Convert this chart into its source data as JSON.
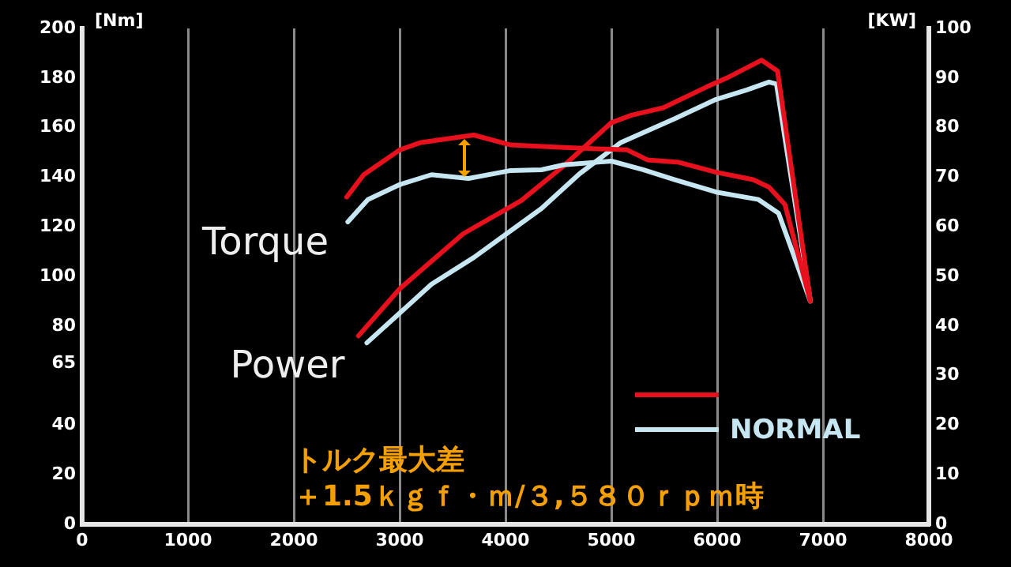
{
  "chart_data": {
    "type": "line",
    "ylabel": "[Nm]",
    "y2label": "[KW]",
    "xlim": [
      0,
      8000
    ],
    "xticks": [
      0,
      1000,
      2000,
      3000,
      4000,
      5000,
      6000,
      7000,
      8000
    ],
    "ylim": [
      0,
      200
    ],
    "yticks": [
      0,
      20,
      40,
      65,
      80,
      100,
      120,
      140,
      160,
      180,
      200
    ],
    "y2lim": [
      0,
      100
    ],
    "y2ticks": [
      0,
      10,
      20,
      30,
      40,
      50,
      60,
      70,
      80,
      90,
      100
    ],
    "grid": "x",
    "legend": "bottom right",
    "marker": "none",
    "line_style": "solid",
    "series": [
      {
        "color": "#e8101c",
        "x": [
          2500,
          2660,
          3000,
          3200,
          3700,
          4050,
          4550,
          5150,
          5340,
          5640,
          5990,
          6340,
          6490,
          6640,
          6880
        ],
        "values": [
          132,
          141,
          151,
          154,
          157,
          153,
          152,
          151,
          147,
          146,
          142,
          139,
          136,
          129,
          90
        ]
      },
      {
        "name": "NORMAL",
        "color": "#c6e6f2",
        "x": [
          2510,
          2700,
          3000,
          3300,
          3650,
          4050,
          4340,
          4550,
          5000,
          5300,
          5600,
          5990,
          6390,
          6580,
          6880
        ],
        "values": [
          122,
          131,
          137,
          141,
          139.5,
          142.7,
          143,
          145,
          146.5,
          143,
          139,
          134,
          131,
          125.5,
          90
        ]
      },
      {
        "color": "#e8101c",
        "axis": "y2",
        "x": [
          2610,
          3000,
          3600,
          4150,
          4550,
          5000,
          5190,
          5490,
          5900,
          6090,
          6420,
          6570,
          6880
        ],
        "values": [
          38,
          47.5,
          58.6,
          65.3,
          72.3,
          81,
          82.5,
          84,
          88.2,
          90,
          93.6,
          91.4,
          45.2
        ]
      },
      {
        "color": "#c6e6f2",
        "axis": "y2",
        "x": [
          2690,
          3300,
          3700,
          4340,
          4700,
          5090,
          5600,
          5990,
          6280,
          6490,
          6560,
          6880
        ],
        "values": [
          36.6,
          48.4,
          53.8,
          63.7,
          70.7,
          77,
          81.8,
          85.7,
          87.6,
          89.2,
          88.8,
          45.2
        ]
      }
    ],
    "annotations": [
      "Torque",
      "Power",
      "トルク最大差",
      "＋1.5ｋｇｆ・ｍ/３,５８０ｒｐｍ時"
    ]
  }
}
